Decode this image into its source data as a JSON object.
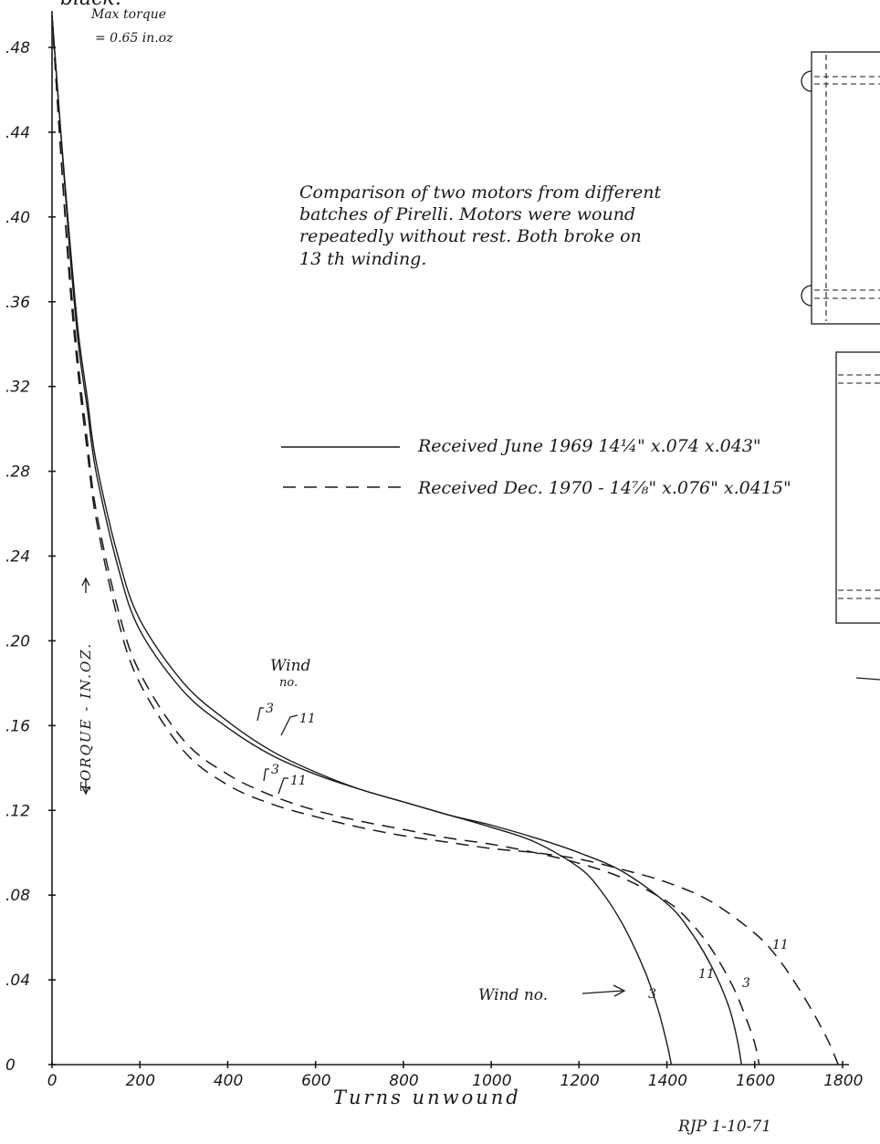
{
  "header": {
    "cut_text": "black.",
    "max_torque_line1": "Max torque",
    "max_torque_line2": "= 0.65 in.oz"
  },
  "description": [
    "Comparison of two motors from different",
    "batches of Pirelli. Motors were wound",
    "repeatedly without rest. Both broke on",
    "13 th winding."
  ],
  "legend": {
    "solid_label": "Received June 1969  14¼\" x.074 x.043\"",
    "dashed_label": "Received Dec. 1970 - 14⅞\" x.076\" x.0415\""
  },
  "annotations": {
    "wind_no_upper_1": "Wind",
    "wind_no_upper_2": "no.",
    "wind_no_lower": "Wind no.",
    "signature": "RJP  1-10-71"
  },
  "chart_data": {
    "type": "line",
    "title": "",
    "xlabel": "Turns unwound",
    "ylabel": "TORQUE - IN.OZ.",
    "xlim": [
      0,
      1800
    ],
    "ylim": [
      0,
      0.48
    ],
    "x_ticks": [
      "0",
      "200",
      "400",
      "600",
      "800",
      "1000",
      "1200",
      "1400",
      "1600",
      "1800"
    ],
    "y_ticks": [
      "0",
      ".04",
      ".08",
      ".12",
      ".16",
      ".20",
      ".24",
      ".28",
      ".32",
      ".36",
      ".40",
      ".44",
      ".48"
    ],
    "series": [
      {
        "name": "Received June 1969",
        "wind_no": "3",
        "style": "solid",
        "x": [
          0,
          20,
          40,
          60,
          80,
          100,
          150,
          200,
          300,
          400,
          500,
          600,
          700,
          800,
          900,
          1000,
          1100,
          1200,
          1250,
          1300,
          1350,
          1380,
          1400,
          1410
        ],
        "y": [
          0.495,
          0.44,
          0.39,
          0.345,
          0.315,
          0.285,
          0.24,
          0.21,
          0.18,
          0.162,
          0.148,
          0.138,
          0.13,
          0.124,
          0.118,
          0.112,
          0.105,
          0.093,
          0.082,
          0.066,
          0.044,
          0.026,
          0.01,
          0.0
        ]
      },
      {
        "name": "Received June 1969",
        "wind_no": "11",
        "style": "solid",
        "x": [
          0,
          20,
          40,
          60,
          80,
          100,
          150,
          200,
          300,
          400,
          500,
          600,
          700,
          800,
          900,
          1000,
          1100,
          1200,
          1300,
          1400,
          1450,
          1500,
          1540,
          1560,
          1570
        ],
        "y": [
          0.495,
          0.44,
          0.385,
          0.34,
          0.31,
          0.28,
          0.235,
          0.205,
          0.176,
          0.159,
          0.146,
          0.137,
          0.13,
          0.124,
          0.118,
          0.113,
          0.107,
          0.1,
          0.091,
          0.076,
          0.064,
          0.047,
          0.028,
          0.012,
          0.0
        ]
      },
      {
        "name": "Received Dec. 1970",
        "wind_no": "3",
        "style": "dashed",
        "x": [
          0,
          20,
          40,
          60,
          80,
          100,
          150,
          200,
          300,
          400,
          500,
          600,
          700,
          800,
          900,
          1000,
          1100,
          1200,
          1300,
          1400,
          1450,
          1500,
          1550,
          1580,
          1600,
          1610
        ],
        "y": [
          0.495,
          0.43,
          0.375,
          0.33,
          0.295,
          0.262,
          0.215,
          0.185,
          0.153,
          0.137,
          0.127,
          0.12,
          0.115,
          0.111,
          0.107,
          0.104,
          0.1,
          0.095,
          0.088,
          0.077,
          0.068,
          0.055,
          0.037,
          0.022,
          0.01,
          0.0
        ]
      },
      {
        "name": "Received Dec. 1970",
        "wind_no": "11",
        "style": "dashed",
        "x": [
          0,
          20,
          40,
          60,
          80,
          100,
          150,
          200,
          300,
          400,
          500,
          600,
          700,
          800,
          900,
          1000,
          1100,
          1200,
          1300,
          1400,
          1500,
          1600,
          1650,
          1700,
          1740,
          1770,
          1790
        ],
        "y": [
          0.495,
          0.43,
          0.37,
          0.325,
          0.29,
          0.258,
          0.21,
          0.18,
          0.148,
          0.132,
          0.123,
          0.117,
          0.112,
          0.108,
          0.105,
          0.102,
          0.1,
          0.097,
          0.092,
          0.086,
          0.077,
          0.062,
          0.051,
          0.036,
          0.022,
          0.01,
          0.0
        ]
      }
    ],
    "grid": false,
    "legend_position": "center-right"
  }
}
